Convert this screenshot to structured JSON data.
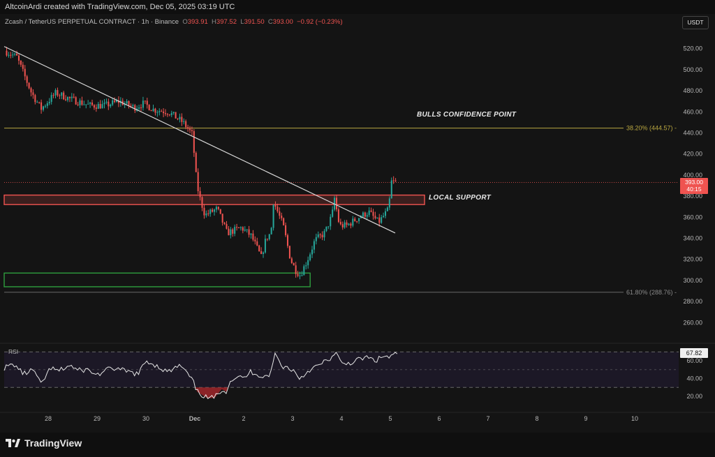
{
  "header": {
    "attribution": "AltcoinArdi created with TradingView.com, Dec 05, 2025 03:19 UTC"
  },
  "legend": {
    "symbol": "Zcash / TetherUS PERPETUAL CONTRACT · 1h · Binance",
    "o_label": "O",
    "o_value": "393.91",
    "h_label": "H",
    "h_value": "397.52",
    "l_label": "L",
    "l_value": "391.50",
    "c_label": "C",
    "c_value": "393.00",
    "change": "−0.92 (−0.23%)"
  },
  "currency_button": "USDT",
  "annotations": {
    "bulls": "BULLS CONFIDENCE POINT",
    "support": "LOCAL SUPPORT",
    "fib_upper": "38.20% (444.57)",
    "fib_lower": "61.80% (288.76)"
  },
  "price_tag": {
    "price": "393.00",
    "countdown": "40:15"
  },
  "rsi": {
    "label": "RSI",
    "value": "67.82"
  },
  "brand": {
    "name": "TradingView"
  },
  "colors": {
    "up": "#26a69a",
    "down": "#ef5350",
    "fib": "#b8a640",
    "support_zone": "#ef5350",
    "demand_zone": "#2e9e3e",
    "rsi_line": "#e6e6e6",
    "rsi_band": "#1c1826",
    "rsi_oversold_fill": "#a0262a"
  },
  "chart_data": [
    {
      "type": "candlestick",
      "title": "Zcash / TetherUS PERPETUAL CONTRACT · 1h · Binance",
      "ylim": [
        245,
        535
      ],
      "y_ticks": [
        "260.00",
        "280.00",
        "300.00",
        "320.00",
        "340.00",
        "360.00",
        "380.00",
        "400.00",
        "420.00",
        "440.00",
        "460.00",
        "480.00",
        "500.00",
        "520.00"
      ],
      "x_tick_labels": [
        "28",
        "29",
        "30",
        "Dec",
        "2",
        "3",
        "4",
        "5",
        "6",
        "7",
        "8",
        "9",
        "10"
      ],
      "x_tick_days": [
        28,
        29,
        30,
        31,
        32,
        33,
        34,
        35,
        36,
        37,
        38,
        39,
        40
      ],
      "x_range_days": [
        27.1,
        40.9
      ],
      "price_path": [
        [
          27.15,
          518
        ],
        [
          27.4,
          512
        ],
        [
          27.7,
          478
        ],
        [
          27.9,
          463
        ],
        [
          28.2,
          478
        ],
        [
          28.5,
          472
        ],
        [
          28.9,
          466
        ],
        [
          29.2,
          466
        ],
        [
          29.5,
          470
        ],
        [
          29.8,
          464
        ],
        [
          30.0,
          468
        ],
        [
          30.2,
          462
        ],
        [
          30.5,
          460
        ],
        [
          30.8,
          450
        ],
        [
          31.0,
          438
        ],
        [
          31.05,
          405
        ],
        [
          31.12,
          382
        ],
        [
          31.25,
          362
        ],
        [
          31.5,
          368
        ],
        [
          31.7,
          345
        ],
        [
          32.0,
          350
        ],
        [
          32.2,
          342
        ],
        [
          32.4,
          322
        ],
        [
          32.5,
          340
        ],
        [
          32.6,
          345
        ],
        [
          32.65,
          375
        ],
        [
          32.85,
          352
        ],
        [
          33.0,
          320
        ],
        [
          33.1,
          310
        ],
        [
          33.2,
          305
        ],
        [
          33.35,
          320
        ],
        [
          33.5,
          338
        ],
        [
          33.7,
          345
        ],
        [
          33.85,
          362
        ],
        [
          33.9,
          378
        ],
        [
          34.0,
          352
        ],
        [
          34.15,
          352
        ],
        [
          34.4,
          360
        ],
        [
          34.6,
          365
        ],
        [
          34.8,
          355
        ],
        [
          35.0,
          367
        ],
        [
          35.03,
          378
        ],
        [
          35.07,
          395
        ],
        [
          35.12,
          393
        ]
      ],
      "last_price": 393.0,
      "trendline": {
        "from": [
          27.1,
          522
        ],
        "to": [
          35.1,
          345
        ]
      },
      "zones": [
        {
          "label": "LOCAL SUPPORT",
          "from_day": 27.1,
          "to_day": 35.7,
          "low": 372,
          "high": 381
        },
        {
          "label": "demand",
          "from_day": 27.1,
          "to_day": 33.36,
          "low": 294,
          "high": 307
        }
      ],
      "fib_levels": [
        {
          "label": "38.20% (444.57)",
          "value": 444.57
        },
        {
          "label": "61.80% (288.76)",
          "value": 288.76
        }
      ]
    },
    {
      "type": "line",
      "title": "RSI",
      "ylim": [
        5,
        75
      ],
      "y_ticks": [
        "20.00",
        "40.00",
        "60.00"
      ],
      "bands": [
        30,
        70
      ],
      "midline": 50,
      "last_value": 67.82,
      "rsi_path": [
        [
          27.1,
          52
        ],
        [
          27.3,
          56
        ],
        [
          27.5,
          45
        ],
        [
          27.7,
          50
        ],
        [
          27.85,
          33
        ],
        [
          28.05,
          52
        ],
        [
          28.2,
          48
        ],
        [
          28.45,
          55
        ],
        [
          28.6,
          49
        ],
        [
          28.8,
          50
        ],
        [
          29.0,
          44
        ],
        [
          29.3,
          52
        ],
        [
          29.6,
          48
        ],
        [
          29.85,
          45
        ],
        [
          30.0,
          60
        ],
        [
          30.2,
          55
        ],
        [
          30.45,
          47
        ],
        [
          30.7,
          55
        ],
        [
          30.85,
          45
        ],
        [
          30.95,
          38
        ],
        [
          31.05,
          25
        ],
        [
          31.25,
          18
        ],
        [
          31.4,
          18
        ],
        [
          31.55,
          28
        ],
        [
          31.65,
          25
        ],
        [
          31.7,
          36
        ],
        [
          31.85,
          42
        ],
        [
          32.0,
          40
        ],
        [
          32.15,
          48
        ],
        [
          32.4,
          42
        ],
        [
          32.55,
          45
        ],
        [
          32.65,
          70
        ],
        [
          32.75,
          55
        ],
        [
          33.0,
          50
        ],
        [
          33.15,
          40
        ],
        [
          33.35,
          50
        ],
        [
          33.55,
          55
        ],
        [
          33.75,
          62
        ],
        [
          33.9,
          68
        ],
        [
          34.0,
          56
        ],
        [
          34.2,
          58
        ],
        [
          34.5,
          64
        ],
        [
          34.7,
          60
        ],
        [
          34.85,
          65
        ],
        [
          35.0,
          64
        ],
        [
          35.1,
          68
        ],
        [
          35.15,
          67.82
        ]
      ]
    }
  ]
}
